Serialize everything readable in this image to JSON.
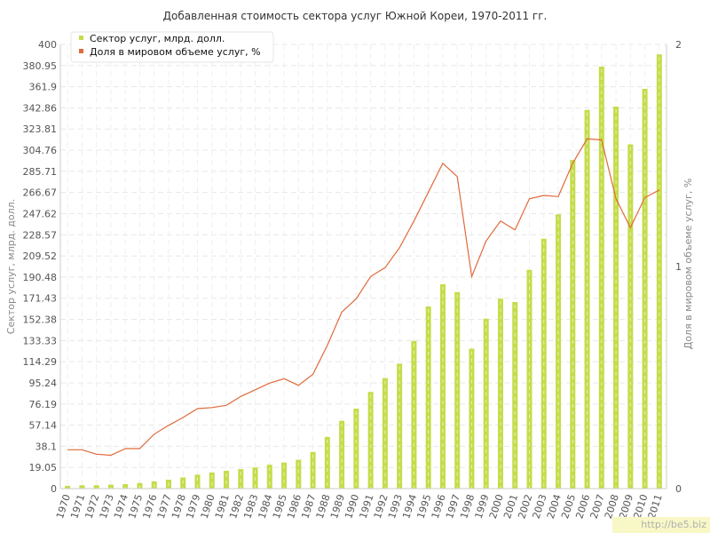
{
  "chart_data": {
    "type": "bar",
    "title": "Добавленная стоимость сектора услуг Южной Кореи, 1970-2011 гг.",
    "ylabel": "Сектор услуг, млрд. долл.",
    "y2label": "Доля в мировом объеме услуг, %",
    "ylim": [
      0,
      400
    ],
    "y2lim": [
      0,
      2
    ],
    "yticks": [
      "0",
      "19.05",
      "38.1",
      "57.14",
      "76.19",
      "95.24",
      "114.29",
      "133.33",
      "152.38",
      "171.43",
      "190.48",
      "209.52",
      "228.57",
      "247.62",
      "266.67",
      "285.71",
      "304.76",
      "323.81",
      "342.86",
      "361.9",
      "380.95",
      "400"
    ],
    "y2ticks": [
      "0",
      "1",
      "2"
    ],
    "legend_position": "top-left",
    "categories": [
      "1970",
      "1971",
      "1972",
      "1973",
      "1974",
      "1975",
      "1976",
      "1977",
      "1978",
      "1979",
      "1980",
      "1981",
      "1982",
      "1983",
      "1984",
      "1985",
      "1986",
      "1987",
      "1988",
      "1989",
      "1990",
      "1991",
      "1992",
      "1993",
      "1994",
      "1995",
      "1996",
      "1997",
      "1998",
      "1999",
      "2000",
      "2001",
      "2002",
      "2003",
      "2004",
      "2005",
      "2006",
      "2007",
      "2008",
      "2009",
      "2010",
      "2011"
    ],
    "series": [
      {
        "name": "Сектор услуг, млрд. долл.",
        "type": "bar",
        "axis": "left",
        "color": "#c5dc4a",
        "values": [
          2.5,
          3,
          3,
          3.5,
          4,
          5,
          6.5,
          8,
          10,
          12.5,
          14.5,
          16,
          17.5,
          19,
          21.5,
          23.5,
          26,
          33,
          46.5,
          61,
          72,
          87,
          99.5,
          112.5,
          133,
          164,
          184,
          177,
          126,
          153,
          171,
          168,
          197,
          225,
          247,
          296,
          341,
          380,
          344,
          310,
          360,
          391
        ]
      },
      {
        "name": "Доля в мировом объеме услуг, %",
        "type": "line",
        "axis": "right",
        "color": "#e06a3a",
        "values": [
          0.175,
          0.175,
          0.155,
          0.15,
          0.18,
          0.18,
          0.245,
          0.285,
          0.32,
          0.36,
          0.365,
          0.375,
          0.415,
          0.445,
          0.475,
          0.495,
          0.465,
          0.515,
          0.645,
          0.795,
          0.855,
          0.955,
          0.995,
          1.085,
          1.205,
          1.335,
          1.465,
          1.405,
          0.955,
          1.115,
          1.205,
          1.165,
          1.305,
          1.32,
          1.315,
          1.465,
          1.575,
          1.57,
          1.305,
          1.175,
          1.31,
          1.345
        ]
      }
    ]
  },
  "watermark": "http://be5.biz"
}
